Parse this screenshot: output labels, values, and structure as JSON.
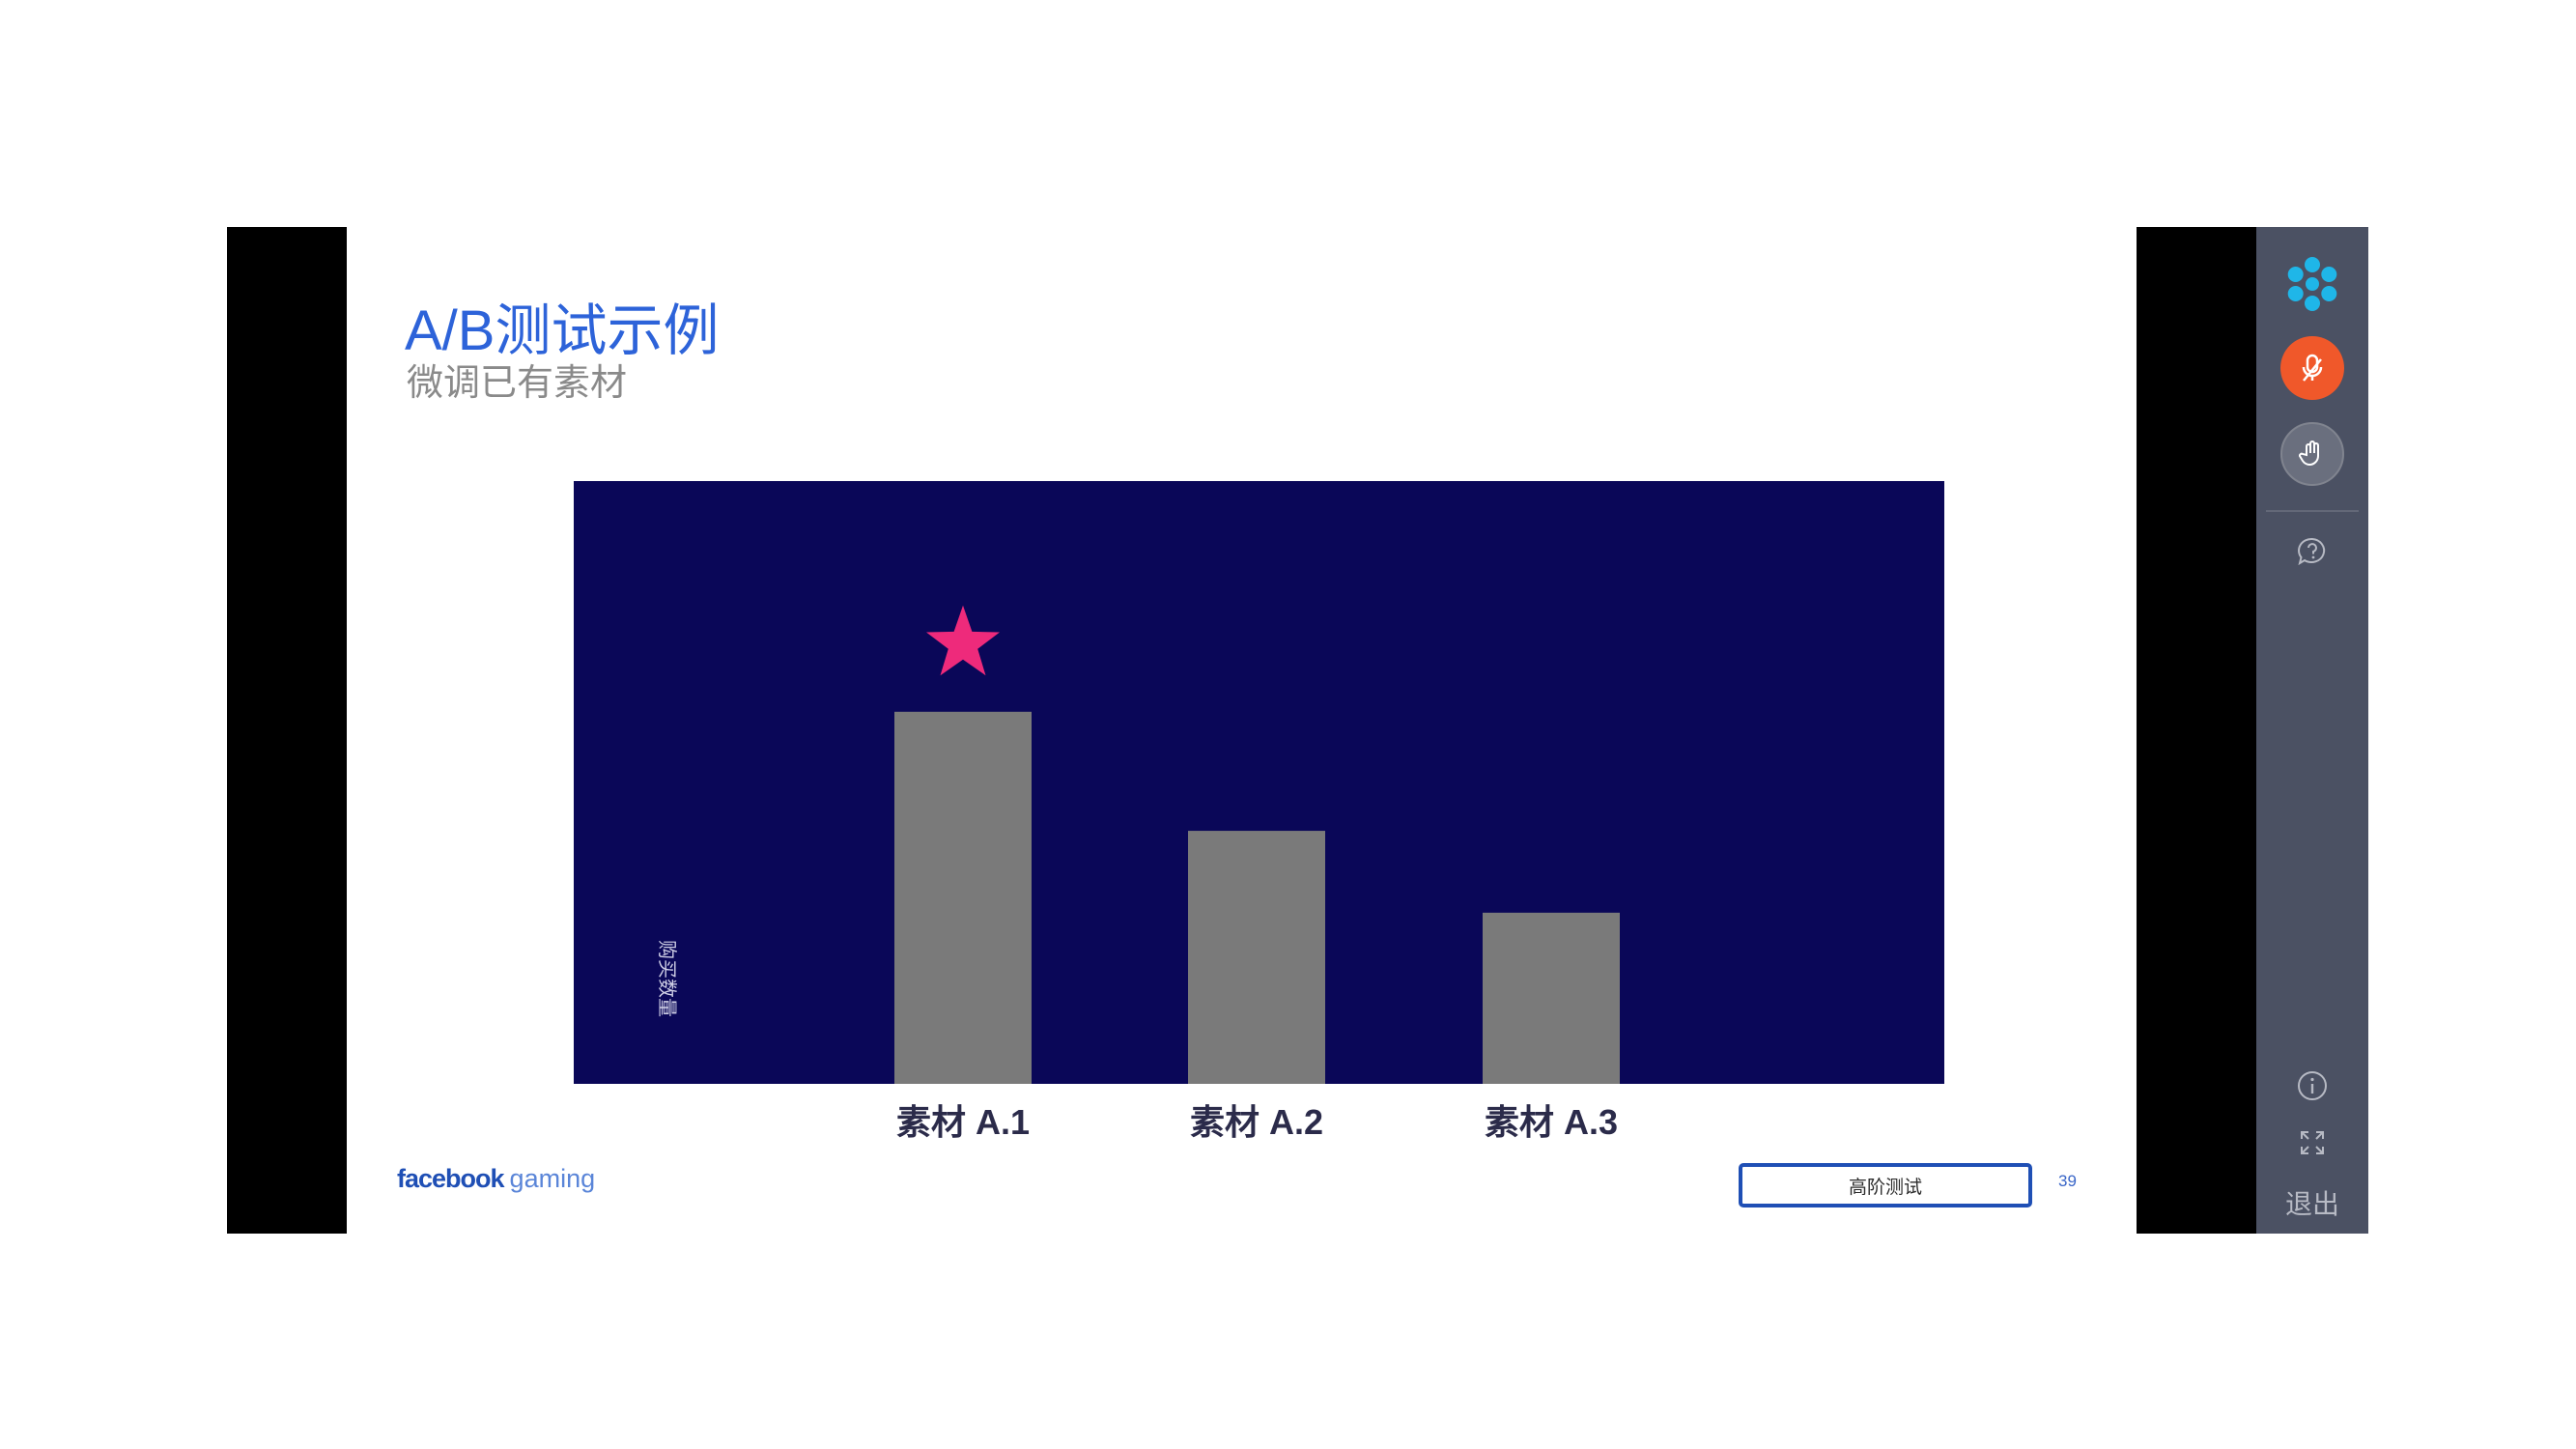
{
  "slide": {
    "title": "A/B测试示例",
    "subtitle": "微调已有素材",
    "brand_main": "facebook",
    "brand_sub": "gaming",
    "tag_label": "高阶测试",
    "page_number": "39"
  },
  "chart_data": {
    "type": "bar",
    "categories": [
      "素材 A.1",
      "素材 A.2",
      "素材 A.3"
    ],
    "values": [
      100,
      68,
      46
    ],
    "ylabel": "购买数量",
    "ylim": [
      0,
      162
    ],
    "grid": false,
    "winner_marker": {
      "category": "素材 A.1",
      "icon": "star-icon",
      "color": "#ee2a7b"
    },
    "colors": {
      "background": "#0a0758",
      "bar": "#7a7a7a"
    }
  },
  "sidebar": {
    "icons": [
      "snowflake-logo-icon",
      "microphone-icon",
      "raise-hand-icon",
      "help-icon",
      "info-icon",
      "fullscreen-icon"
    ],
    "exit_label": "退出",
    "colors": {
      "background": "#4b5163",
      "mic_active": "#f0582a",
      "logo": "#1fb6e8"
    }
  },
  "colors": {
    "title": "#2d63d9",
    "subtitle": "#8a8a8a",
    "viewer_bg": "#000000"
  }
}
